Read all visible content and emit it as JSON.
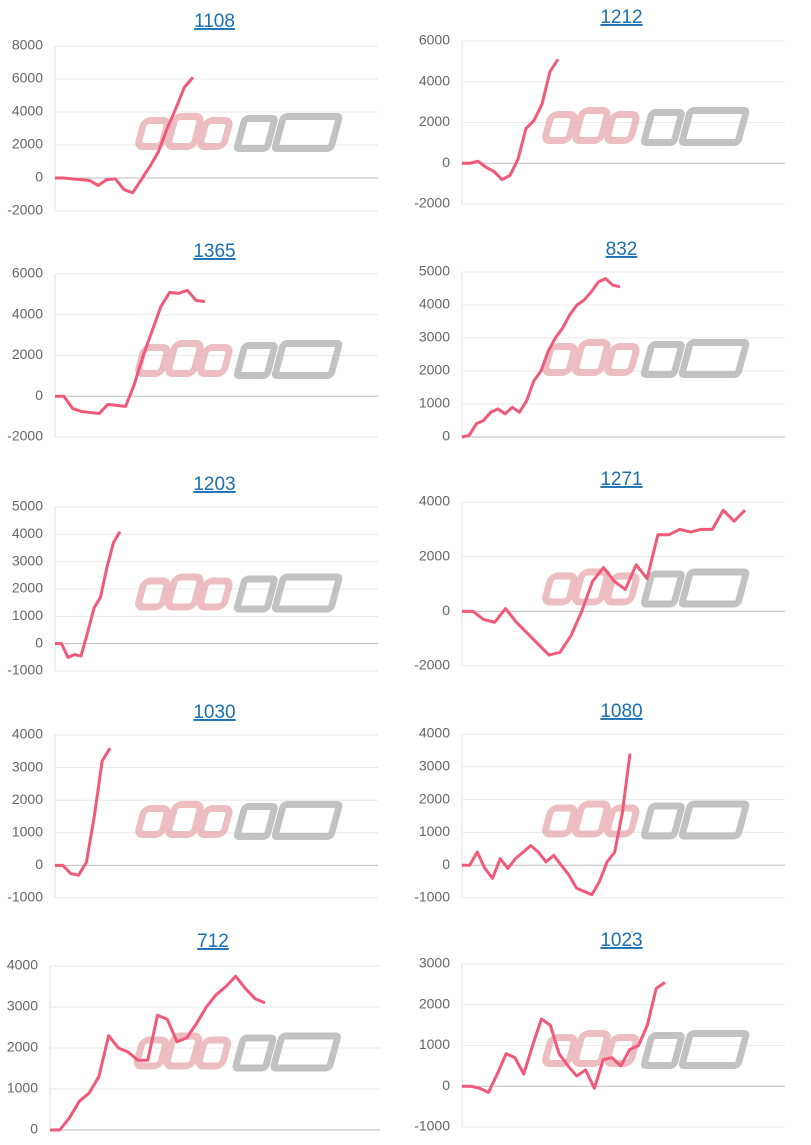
{
  "chart_data": [
    {
      "type": "line",
      "title": "1108",
      "color": "#f05a78",
      "grid": true,
      "ylim": [
        -2000,
        8000
      ],
      "yticks": [
        -2000,
        0,
        2000,
        4000,
        6000,
        8000
      ],
      "values": [
        0,
        0,
        -50,
        -100,
        -150,
        -450,
        -100,
        -50,
        -700,
        -900,
        -100,
        700,
        1600,
        3000,
        4200,
        5500,
        6100
      ]
    },
    {
      "type": "line",
      "title": "1212",
      "color": "#f05a78",
      "grid": true,
      "ylim": [
        -2000,
        6000
      ],
      "yticks": [
        -2000,
        0,
        2000,
        4000,
        6000
      ],
      "values": [
        0,
        0,
        100,
        -200,
        -400,
        -800,
        -600,
        200,
        1700,
        2100,
        2900,
        4500,
        5100
      ]
    },
    {
      "type": "line",
      "title": "1365",
      "color": "#f05a78",
      "grid": true,
      "ylim": [
        -2000,
        6000
      ],
      "yticks": [
        -2000,
        0,
        2000,
        4000,
        6000
      ],
      "values": [
        0,
        0,
        -600,
        -750,
        -800,
        -850,
        -400,
        -450,
        -500,
        600,
        2000,
        3200,
        4400,
        5100,
        5050,
        5200,
        4700,
        4650
      ]
    },
    {
      "type": "line",
      "title": "832",
      "color": "#f05a78",
      "grid": true,
      "ylim": [
        0,
        5000
      ],
      "yticks": [
        0,
        1000,
        2000,
        3000,
        4000,
        5000
      ],
      "values": [
        0,
        50,
        400,
        500,
        750,
        850,
        700,
        900,
        750,
        1100,
        1700,
        2000,
        2600,
        3000,
        3300,
        3700,
        4000,
        4150,
        4400,
        4700,
        4800,
        4600,
        4550
      ]
    },
    {
      "type": "line",
      "title": "1203",
      "color": "#f05a78",
      "grid": true,
      "ylim": [
        -1000,
        5000
      ],
      "yticks": [
        -1000,
        0,
        1000,
        2000,
        3000,
        4000,
        5000
      ],
      "values": [
        0,
        0,
        -500,
        -400,
        -450,
        400,
        1300,
        1700,
        2800,
        3700,
        4100
      ]
    },
    {
      "type": "line",
      "title": "1271",
      "color": "#f05a78",
      "grid": true,
      "ylim": [
        -2000,
        4000
      ],
      "yticks": [
        -2000,
        0,
        2000,
        4000
      ],
      "values": [
        0,
        0,
        -300,
        -400,
        100,
        -400,
        -800,
        -1200,
        -1600,
        -1500,
        -900,
        0,
        1100,
        1600,
        1100,
        800,
        1700,
        1200,
        2800,
        2800,
        3000,
        2900,
        3000,
        3000,
        3700,
        3300,
        3700
      ]
    },
    {
      "type": "line",
      "title": "1030",
      "color": "#f05a78",
      "grid": true,
      "ylim": [
        -1000,
        4000
      ],
      "yticks": [
        -1000,
        0,
        1000,
        2000,
        3000,
        4000
      ],
      "values": [
        0,
        0,
        -250,
        -300,
        100,
        1500,
        3200,
        3600
      ]
    },
    {
      "type": "line",
      "title": "1080",
      "color": "#f05a78",
      "grid": true,
      "ylim": [
        -1000,
        4000
      ],
      "yticks": [
        -1000,
        0,
        1000,
        2000,
        3000,
        4000
      ],
      "values": [
        0,
        0,
        400,
        -100,
        -400,
        200,
        -100,
        200,
        400,
        600,
        400,
        100,
        300,
        0,
        -300,
        -700,
        -800,
        -900,
        -500,
        100,
        400,
        1600,
        3400
      ]
    },
    {
      "type": "line",
      "title": "712",
      "color": "#f05a78",
      "grid": true,
      "ylim": [
        0,
        4000
      ],
      "yticks": [
        0,
        1000,
        2000,
        3000,
        4000
      ],
      "values": [
        0,
        0,
        300,
        700,
        900,
        1300,
        2300,
        2000,
        1900,
        1700,
        1700,
        2800,
        2700,
        2150,
        2250,
        2600,
        3000,
        3300,
        3500,
        3750,
        3450,
        3200,
        3100
      ]
    },
    {
      "type": "line",
      "title": "1023",
      "color": "#f05a78",
      "grid": true,
      "ylim": [
        -1000,
        3000
      ],
      "yticks": [
        -1000,
        0,
        1000,
        2000,
        3000
      ],
      "values": [
        0,
        0,
        -50,
        -150,
        300,
        800,
        700,
        300,
        1000,
        1650,
        1500,
        800,
        500,
        250,
        400,
        -50,
        650,
        700,
        500,
        900,
        1000,
        1500,
        2400,
        2550
      ]
    }
  ]
}
